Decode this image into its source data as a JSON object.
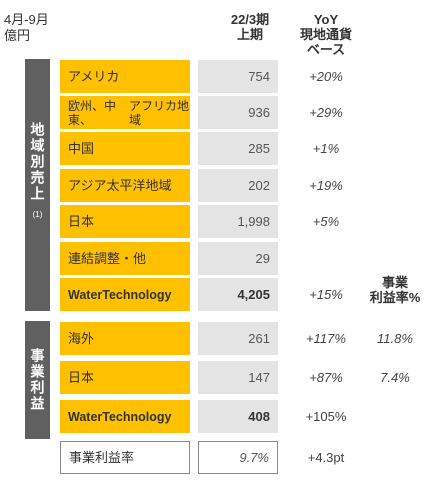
{
  "period_label": [
    "4月-9月",
    "億円"
  ],
  "headers": {
    "period": [
      "22/3期",
      "上期"
    ],
    "yoy": [
      "YoY",
      "現地通貨",
      "ベース"
    ],
    "margin": [
      "事業",
      "利益率%"
    ]
  },
  "sales_section": {
    "title": "地域別売上",
    "note": "(1)",
    "rows": [
      {
        "label": "アメリカ",
        "value": "754",
        "yoy": "+20%"
      },
      {
        "label": "欧州、中東、アフリカ地域",
        "value": "936",
        "yoy": "+29%"
      },
      {
        "label": "中国",
        "value": "285",
        "yoy": "+1%"
      },
      {
        "label": "アジア太平洋地域",
        "value": "202",
        "yoy": "+19%"
      },
      {
        "label": "日本",
        "value": "1,998",
        "yoy": "+5%"
      },
      {
        "label": "連結調整・他",
        "value": "29",
        "yoy": ""
      },
      {
        "label": "Water Technology",
        "value": "4,205",
        "yoy": "+15%"
      }
    ]
  },
  "profit_section": {
    "title": "事業利益",
    "rows": [
      {
        "label": "海外",
        "value": "261",
        "yoy": "+117%",
        "margin": "11.8%"
      },
      {
        "label": "日本",
        "value": "147",
        "yoy": "+87%",
        "margin": "7.4%"
      },
      {
        "label": "Water Technology",
        "value": "408",
        "yoy": "+105%"
      }
    ]
  },
  "margin_row": {
    "label": "事業利益率",
    "value": "9.7%",
    "yoy": "+4.3pt"
  }
}
